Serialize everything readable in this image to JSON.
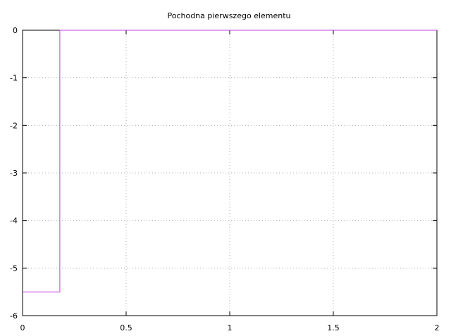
{
  "chart_data": {
    "type": "line",
    "title": "Pochodna pierwszego elementu",
    "xlabel": "",
    "ylabel": "",
    "xlim": [
      0,
      2
    ],
    "ylim": [
      -6,
      0
    ],
    "grid": true,
    "x_ticks": [
      0,
      0.5,
      1,
      1.5,
      2
    ],
    "x_tick_labels": [
      "0",
      "0.5",
      "1",
      "1.5",
      "2"
    ],
    "y_ticks": [
      0,
      -1,
      -2,
      -3,
      -4,
      -5,
      -6
    ],
    "y_tick_labels": [
      "0",
      "-1",
      "-2",
      "-3",
      "-4",
      "-5",
      "-6"
    ],
    "series": [
      {
        "color": "#c040e0",
        "points": [
          [
            0,
            -5.5
          ],
          [
            0.18,
            -5.5
          ],
          [
            0.18,
            0
          ],
          [
            2,
            0
          ]
        ]
      }
    ]
  }
}
